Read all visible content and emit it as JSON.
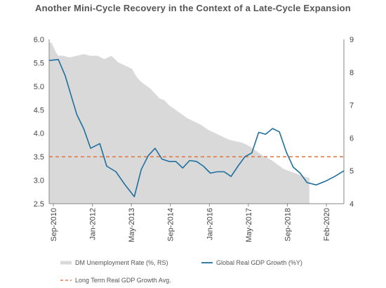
{
  "chart_data": {
    "type": "area",
    "title": "Another Mini-Cycle Recovery in the Context of a Late-Cycle Expansion",
    "x_tick_labels": [
      "Sep-2010",
      "Jan-2012",
      "May-2013",
      "Sep-2014",
      "Jan-2016",
      "May-2017",
      "Sep-2018",
      "Feb-2020"
    ],
    "left_axis": {
      "ylim": [
        2.5,
        6.0
      ],
      "ticks": [
        "2.5",
        "3.0",
        "3.5",
        "4.0",
        "4.5",
        "5.0",
        "5.5",
        "6.0"
      ]
    },
    "right_axis": {
      "ylim": [
        4,
        9
      ],
      "ticks": [
        "4",
        "5",
        "6",
        "7",
        "8",
        "9"
      ]
    },
    "series": [
      {
        "name": "DM Unemployment Rate (%, RS)",
        "kind": "area",
        "color": "#d9d9d9",
        "axis": "right",
        "x": [
          0,
          1,
          2,
          3,
          4,
          6,
          9,
          12,
          15,
          18,
          21,
          24,
          27,
          30,
          33,
          36,
          38,
          40,
          42,
          44,
          46,
          48,
          50,
          52,
          54,
          57,
          60,
          63,
          66,
          69,
          72,
          75,
          78,
          81,
          84,
          87,
          90,
          93,
          96,
          99,
          102,
          104,
          106,
          108,
          110,
          112,
          113
        ],
        "values": [
          8.9,
          8.9,
          8.75,
          8.6,
          8.5,
          8.5,
          8.45,
          8.5,
          8.55,
          8.5,
          8.5,
          8.4,
          8.5,
          8.3,
          8.2,
          8.1,
          7.85,
          7.7,
          7.6,
          7.5,
          7.35,
          7.2,
          7.15,
          7.0,
          6.9,
          6.75,
          6.6,
          6.5,
          6.4,
          6.25,
          6.15,
          6.05,
          5.95,
          5.9,
          5.85,
          5.75,
          5.6,
          5.45,
          5.35,
          5.2,
          5.05,
          5.0,
          4.95,
          4.9,
          4.85,
          4.8,
          4.8
        ]
      },
      {
        "name": "Global Real GDP Growth (%Y)",
        "kind": "line",
        "color": "#1f6f9f",
        "axis": "left",
        "x": [
          0,
          2,
          4,
          7,
          12,
          15,
          18,
          22,
          25,
          29,
          33,
          37,
          40,
          43,
          46,
          49,
          52,
          55,
          58,
          61,
          64,
          67,
          70,
          73,
          76,
          79,
          82,
          85,
          88,
          91,
          94,
          97,
          100,
          103,
          106,
          109,
          112,
          116,
          120,
          124,
          128
        ],
        "values": [
          5.55,
          5.56,
          5.57,
          5.22,
          4.4,
          4.1,
          3.68,
          3.78,
          3.3,
          3.18,
          2.9,
          2.65,
          3.23,
          3.52,
          3.68,
          3.45,
          3.4,
          3.4,
          3.26,
          3.42,
          3.4,
          3.3,
          3.15,
          3.18,
          3.18,
          3.08,
          3.3,
          3.5,
          3.58,
          4.02,
          3.98,
          4.1,
          4.03,
          3.6,
          3.28,
          3.15,
          2.95,
          2.9,
          2.98,
          3.08,
          3.2
        ]
      },
      {
        "name": "Long Term Real GDP Growth Avg.",
        "kind": "dashed",
        "color": "#e07b4a",
        "axis": "left",
        "value": 3.5
      }
    ],
    "legend_position": "bottom"
  }
}
